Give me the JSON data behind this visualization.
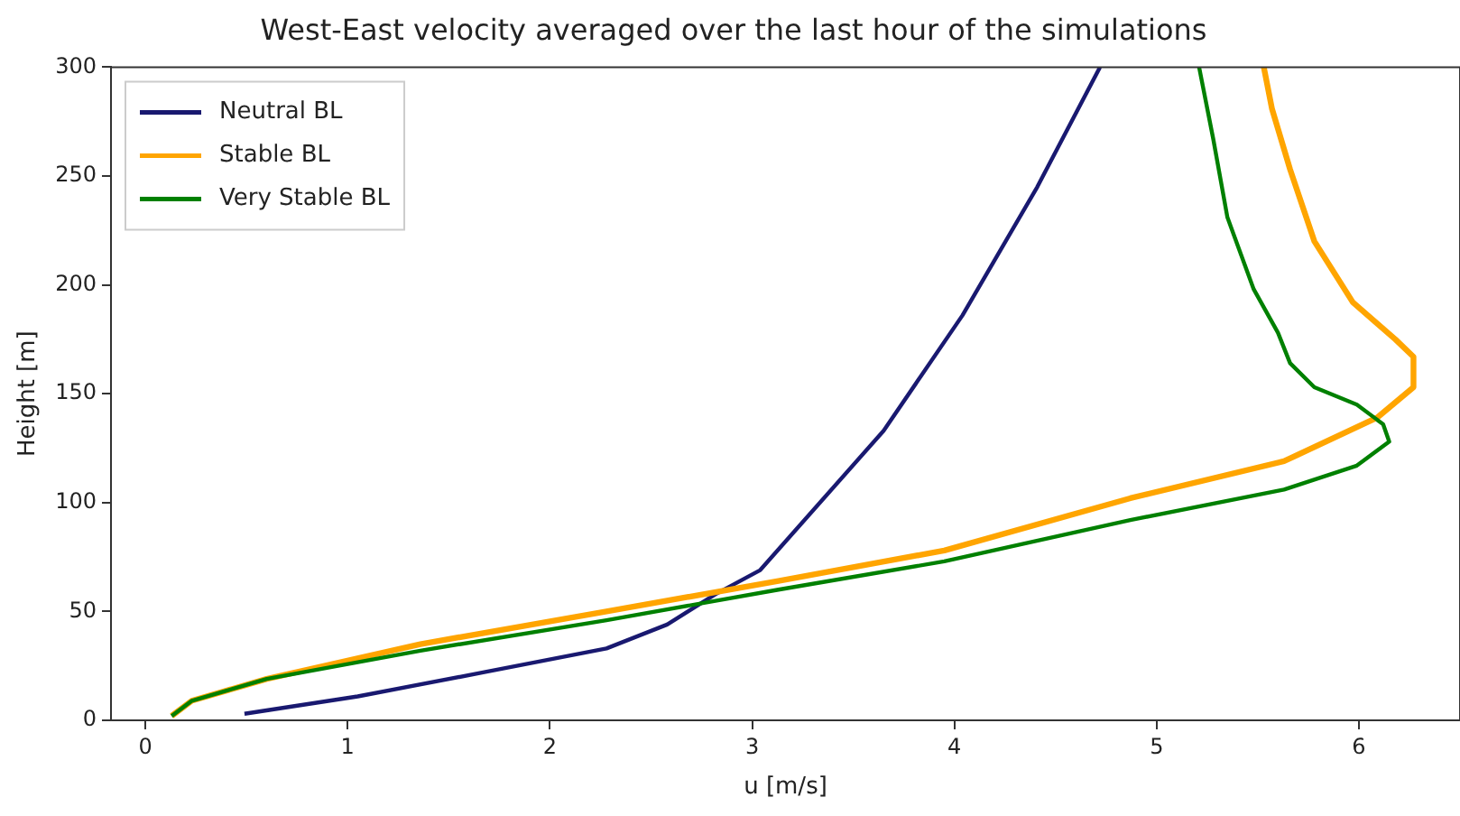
{
  "chart_data": {
    "type": "line",
    "title": "West-East velocity averaged over the last hour of the simulations",
    "xlabel": "u [m/s]",
    "ylabel": "Height [m]",
    "xlim": [
      -0.17,
      6.5
    ],
    "xticks": [
      0,
      1,
      2,
      3,
      4,
      5,
      6
    ],
    "ylim": [
      0,
      300
    ],
    "yticks": [
      0,
      50,
      100,
      150,
      200,
      250,
      300
    ],
    "grid": false,
    "legend": "top left",
    "line_style": "solid",
    "series": [
      {
        "name": "Neutral BL",
        "color": "#191970",
        "x": [
          0.49,
          1.05,
          1.67,
          2.28,
          2.58,
          2.82,
          3.04,
          3.65,
          4.04,
          4.41,
          4.72
        ],
        "values": [
          3,
          11,
          22,
          33,
          44,
          58,
          69,
          133,
          186,
          245,
          300
        ]
      },
      {
        "name": "Stable BL",
        "color": "#ffa500",
        "x": [
          0.13,
          0.23,
          0.6,
          1.36,
          2.28,
          3.13,
          3.95,
          4.87,
          5.63,
          6.09,
          6.27,
          6.27,
          6.18,
          5.97,
          5.78,
          5.66,
          5.57,
          5.53
        ],
        "values": [
          2,
          9,
          19,
          35,
          50,
          64,
          78,
          102,
          119,
          139,
          153,
          167,
          175,
          192,
          220,
          253,
          281,
          300
        ]
      },
      {
        "name": "Very Stable BL",
        "color": "#008000",
        "x": [
          0.13,
          0.23,
          0.6,
          1.36,
          2.28,
          3.13,
          3.95,
          4.87,
          5.63,
          5.99,
          6.15,
          6.12,
          5.99,
          5.78,
          5.66,
          5.6,
          5.48,
          5.35,
          5.28,
          5.21
        ],
        "values": [
          2,
          9,
          19,
          32,
          46,
          60,
          73,
          92,
          106,
          117,
          128,
          136,
          145,
          153,
          164,
          178,
          198,
          231,
          267,
          300
        ]
      }
    ]
  }
}
